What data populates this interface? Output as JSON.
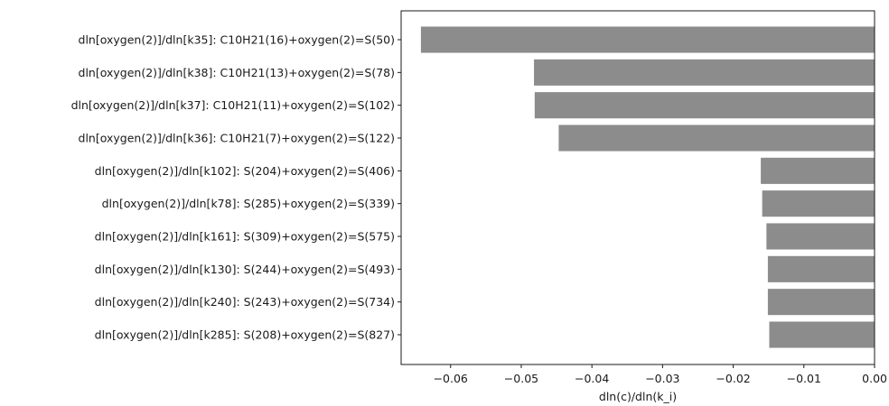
{
  "chart_data": {
    "type": "bar",
    "orientation": "horizontal",
    "categories": [
      "dln[oxygen(2)]/dln[k35]: C10H21(16)+oxygen(2)=S(50)",
      "dln[oxygen(2)]/dln[k38]: C10H21(13)+oxygen(2)=S(78)",
      "dln[oxygen(2)]/dln[k37]: C10H21(11)+oxygen(2)=S(102)",
      "dln[oxygen(2)]/dln[k36]: C10H21(7)+oxygen(2)=S(122)",
      "dln[oxygen(2)]/dln[k102]: S(204)+oxygen(2)=S(406)",
      "dln[oxygen(2)]/dln[k78]: S(285)+oxygen(2)=S(339)",
      "dln[oxygen(2)]/dln[k161]: S(309)+oxygen(2)=S(575)",
      "dln[oxygen(2)]/dln[k130]: S(244)+oxygen(2)=S(493)",
      "dln[oxygen(2)]/dln[k240]: S(243)+oxygen(2)=S(734)",
      "dln[oxygen(2)]/dln[k285]: S(208)+oxygen(2)=S(827)"
    ],
    "values": [
      -0.0642,
      -0.0482,
      -0.0481,
      -0.0447,
      -0.0161,
      -0.0159,
      -0.0153,
      -0.0151,
      -0.0151,
      -0.0149
    ],
    "xlabel": "dln(c)/dln(k_i)",
    "ylabel": "",
    "title": "",
    "xlim": [
      -0.067,
      0.0
    ],
    "xticks": [
      -0.06,
      -0.05,
      -0.04,
      -0.03,
      -0.02,
      -0.01,
      0.0
    ],
    "xtick_labels": [
      "−0.06",
      "−0.05",
      "−0.04",
      "−0.03",
      "−0.02",
      "−0.01",
      "0.00"
    ],
    "bar_color": "#8c8c8c",
    "grid": false,
    "legend": "none"
  }
}
